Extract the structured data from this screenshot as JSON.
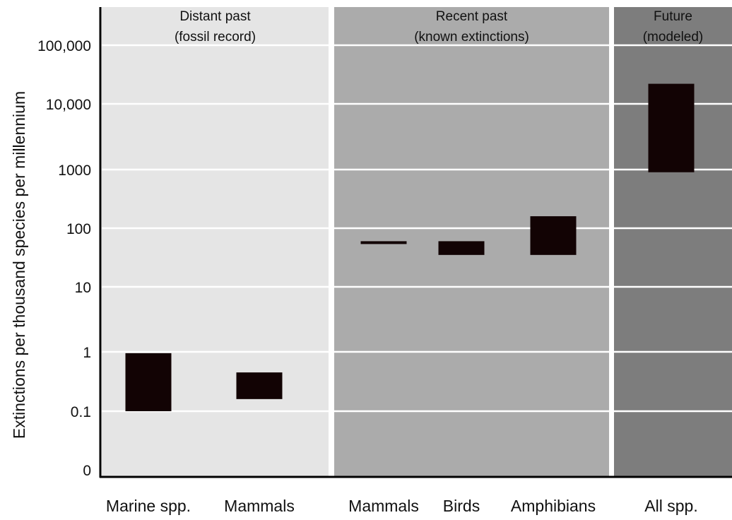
{
  "chart_data": {
    "type": "bar",
    "ylabel": "Extinctions per thousand species per millennium",
    "y_scale": "log",
    "y_ticks": [
      "0",
      "0.1",
      "1",
      "10",
      "100",
      "1000",
      "10,000",
      "100,000"
    ],
    "grid": true,
    "panels": [
      {
        "title_line1": "Distant past",
        "title_line2": "(fossil record)",
        "shade": "#e5e5e5"
      },
      {
        "title_line1": "Recent past",
        "title_line2": "(known extinctions)",
        "shade": "#ababab"
      },
      {
        "title_line1": "Future",
        "title_line2": "(modeled)",
        "shade": "#7d7d7d"
      }
    ],
    "categories": [
      "Marine spp.",
      "Mammals",
      "Mammals",
      "Birds",
      "Amphibians",
      "All spp."
    ],
    "category_panel": [
      0,
      0,
      1,
      1,
      1,
      2
    ],
    "series": [
      {
        "low": [
          0.1,
          0.16,
          55,
          35,
          35,
          900
        ],
        "high": [
          0.95,
          0.45,
          60,
          60,
          160,
          22000
        ]
      }
    ],
    "bar_color": "#120304"
  }
}
